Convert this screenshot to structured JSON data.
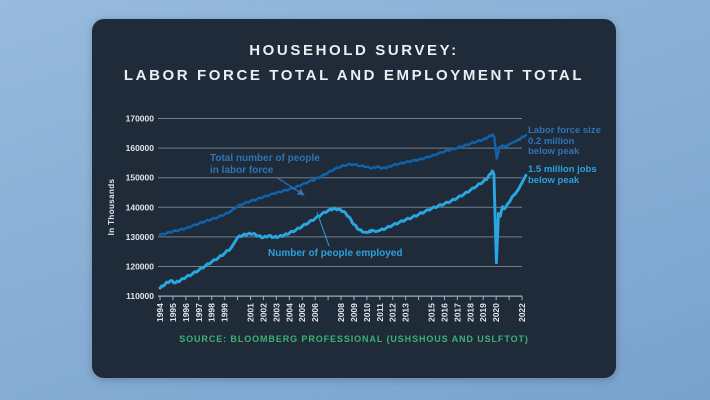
{
  "theme": {
    "page_background_top": "#97badd",
    "page_background_bottom": "#79a2cc",
    "panel_background": "#202b3a",
    "title_color": "#e9eef3",
    "axis_text_color": "#dce3e9",
    "grid_color": "rgba(222,229,235,0.45)",
    "axis_line_color": "#a3aeb8",
    "source_color": "#3ab274"
  },
  "title": {
    "line1": "HOUSEHOLD SURVEY:",
    "line2": "LABOR FORCE TOTAL AND EMPLOYMENT TOTAL"
  },
  "source_note": "SOURCE: BLOOMBERG PROFESSIONAL (USHSHOUS AND USLFTOT)",
  "annotations": {
    "labor_force_note": {
      "lines": [
        "Labor force size",
        "0.2 million",
        "below peak"
      ],
      "color": "#2e73b4"
    },
    "employed_note": {
      "lines": [
        "1.5 million jobs",
        "below peak"
      ],
      "color": "#2aa0dc"
    }
  },
  "chart_data": {
    "type": "line",
    "title": "HOUSEHOLD SURVEY: LABOR FORCE TOTAL AND EMPLOYMENT TOTAL",
    "xlabel": "",
    "ylabel": "In Thousands",
    "ylim": [
      110000,
      170000
    ],
    "xlim": [
      1993.6,
      2022.6
    ],
    "grid": "horizontal",
    "legend_position": "inline-labels",
    "axes": {
      "y_ticks": [
        110000,
        120000,
        130000,
        140000,
        150000,
        160000,
        170000
      ],
      "x_ticks": [
        {
          "year": 1994,
          "label": "1994"
        },
        {
          "year": 1995,
          "label": "1995"
        },
        {
          "year": 1996,
          "label": "1996"
        },
        {
          "year": 1997,
          "label": "1997"
        },
        {
          "year": 1998,
          "label": "1998"
        },
        {
          "year": 1999,
          "label": "1999"
        },
        {
          "year": 2000,
          "label": ""
        },
        {
          "year": 2001,
          "label": "2001"
        },
        {
          "year": 2002,
          "label": "2002"
        },
        {
          "year": 2003,
          "label": "2003"
        },
        {
          "year": 2004,
          "label": "2004"
        },
        {
          "year": 2005,
          "label": "2005"
        },
        {
          "year": 2006,
          "label": "2006"
        },
        {
          "year": 2007,
          "label": ""
        },
        {
          "year": 2008,
          "label": "2008"
        },
        {
          "year": 2009,
          "label": "2009"
        },
        {
          "year": 2010,
          "label": "2010"
        },
        {
          "year": 2011,
          "label": "2011"
        },
        {
          "year": 2012,
          "label": "2012"
        },
        {
          "year": 2013,
          "label": "2013"
        },
        {
          "year": 2014,
          "label": ""
        },
        {
          "year": 2015,
          "label": "2015"
        },
        {
          "year": 2016,
          "label": "2016"
        },
        {
          "year": 2017,
          "label": "2017"
        },
        {
          "year": 2018,
          "label": "2018"
        },
        {
          "year": 2019,
          "label": "2019"
        },
        {
          "year": 2020,
          "label": "2020"
        },
        {
          "year": 2021,
          "label": ""
        },
        {
          "year": 2022,
          "label": "2022"
        }
      ]
    },
    "series": [
      {
        "id": "labor_force",
        "name": "Total number of people in labor force",
        "label_lines": [
          "Total number of people",
          "in labor force"
        ],
        "color": "#0f62ab",
        "label_color": "#2e73b4",
        "noise": 220,
        "points": [
          [
            1994.0,
            130700
          ],
          [
            1994.5,
            131200
          ],
          [
            1995.0,
            131900
          ],
          [
            1995.5,
            132300
          ],
          [
            1996.0,
            132900
          ],
          [
            1996.5,
            133700
          ],
          [
            1997.0,
            134500
          ],
          [
            1997.5,
            135300
          ],
          [
            1998.0,
            136000
          ],
          [
            1998.5,
            136700
          ],
          [
            1999.0,
            137600
          ],
          [
            1999.5,
            138700
          ],
          [
            2000.0,
            140400
          ],
          [
            2000.5,
            141300
          ],
          [
            2001.0,
            142100
          ],
          [
            2001.5,
            142800
          ],
          [
            2002.0,
            143500
          ],
          [
            2002.5,
            144200
          ],
          [
            2003.0,
            144900
          ],
          [
            2003.5,
            145500
          ],
          [
            2004.0,
            146100
          ],
          [
            2004.5,
            146800
          ],
          [
            2005.0,
            147700
          ],
          [
            2005.5,
            148600
          ],
          [
            2006.0,
            149500
          ],
          [
            2006.5,
            150500
          ],
          [
            2007.0,
            151700
          ],
          [
            2007.5,
            152900
          ],
          [
            2008.0,
            153800
          ],
          [
            2008.5,
            154400
          ],
          [
            2009.0,
            154500
          ],
          [
            2009.5,
            154000
          ],
          [
            2010.0,
            153700
          ],
          [
            2010.4,
            153200
          ],
          [
            2010.8,
            153700
          ],
          [
            2011.2,
            153200
          ],
          [
            2011.6,
            153500
          ],
          [
            2012.0,
            154200
          ],
          [
            2012.5,
            154700
          ],
          [
            2013.0,
            155200
          ],
          [
            2013.5,
            155700
          ],
          [
            2014.0,
            156100
          ],
          [
            2014.5,
            156700
          ],
          [
            2015.0,
            157300
          ],
          [
            2015.5,
            158100
          ],
          [
            2016.0,
            158900
          ],
          [
            2016.5,
            159500
          ],
          [
            2017.0,
            160100
          ],
          [
            2017.5,
            160800
          ],
          [
            2018.0,
            161500
          ],
          [
            2018.5,
            162200
          ],
          [
            2019.0,
            162900
          ],
          [
            2019.35,
            163600
          ],
          [
            2019.7,
            164600
          ],
          [
            2019.85,
            163900
          ],
          [
            2020.05,
            156500
          ],
          [
            2020.25,
            160300
          ],
          [
            2020.5,
            160900
          ],
          [
            2020.75,
            160500
          ],
          [
            2021.0,
            161300
          ],
          [
            2021.3,
            161900
          ],
          [
            2021.6,
            162500
          ],
          [
            2021.9,
            163300
          ],
          [
            2022.3,
            164400
          ]
        ]
      },
      {
        "id": "employed",
        "name": "Number of people employed",
        "label_lines": [
          "Number of people employed"
        ],
        "color": "#29a7e2",
        "label_color": "#2aa0dc",
        "noise": 260,
        "points": [
          [
            1994.0,
            112700
          ],
          [
            1994.4,
            114100
          ],
          [
            1994.8,
            115200
          ],
          [
            1995.2,
            114500
          ],
          [
            1995.6,
            115400
          ],
          [
            1996.0,
            116400
          ],
          [
            1996.5,
            117500
          ],
          [
            1997.0,
            118800
          ],
          [
            1997.5,
            120200
          ],
          [
            1998.0,
            121600
          ],
          [
            1998.5,
            122900
          ],
          [
            1999.0,
            124500
          ],
          [
            1999.5,
            126300
          ],
          [
            2000.0,
            129800
          ],
          [
            2000.4,
            130600
          ],
          [
            2000.8,
            131000
          ],
          [
            2001.2,
            131100
          ],
          [
            2001.6,
            130300
          ],
          [
            2002.0,
            129800
          ],
          [
            2002.4,
            130400
          ],
          [
            2002.8,
            129900
          ],
          [
            2003.2,
            130100
          ],
          [
            2003.6,
            130600
          ],
          [
            2004.0,
            131300
          ],
          [
            2004.5,
            132300
          ],
          [
            2005.0,
            133600
          ],
          [
            2005.5,
            134900
          ],
          [
            2006.0,
            136200
          ],
          [
            2006.5,
            137700
          ],
          [
            2007.0,
            138900
          ],
          [
            2007.4,
            139500
          ],
          [
            2007.8,
            139300
          ],
          [
            2008.2,
            138600
          ],
          [
            2008.6,
            136800
          ],
          [
            2009.0,
            134200
          ],
          [
            2009.4,
            132400
          ],
          [
            2009.8,
            131600
          ],
          [
            2010.1,
            131500
          ],
          [
            2010.4,
            132300
          ],
          [
            2010.7,
            131800
          ],
          [
            2011.0,
            132200
          ],
          [
            2011.5,
            133000
          ],
          [
            2012.0,
            134000
          ],
          [
            2012.5,
            134900
          ],
          [
            2013.0,
            135800
          ],
          [
            2013.5,
            136600
          ],
          [
            2014.0,
            137600
          ],
          [
            2014.5,
            138600
          ],
          [
            2015.0,
            139600
          ],
          [
            2015.5,
            140400
          ],
          [
            2016.0,
            141200
          ],
          [
            2016.5,
            142100
          ],
          [
            2017.0,
            143200
          ],
          [
            2017.5,
            144400
          ],
          [
            2018.0,
            145800
          ],
          [
            2018.5,
            147200
          ],
          [
            2019.0,
            148700
          ],
          [
            2019.35,
            150000
          ],
          [
            2019.7,
            152300
          ],
          [
            2019.82,
            151200
          ],
          [
            2020.02,
            121300
          ],
          [
            2020.18,
            137900
          ],
          [
            2020.32,
            137000
          ],
          [
            2020.48,
            140200
          ],
          [
            2020.64,
            139500
          ],
          [
            2020.85,
            140900
          ],
          [
            2021.05,
            142000
          ],
          [
            2021.25,
            143600
          ],
          [
            2021.5,
            144700
          ],
          [
            2021.75,
            146300
          ],
          [
            2022.0,
            148300
          ],
          [
            2022.3,
            150800
          ]
        ]
      }
    ]
  }
}
